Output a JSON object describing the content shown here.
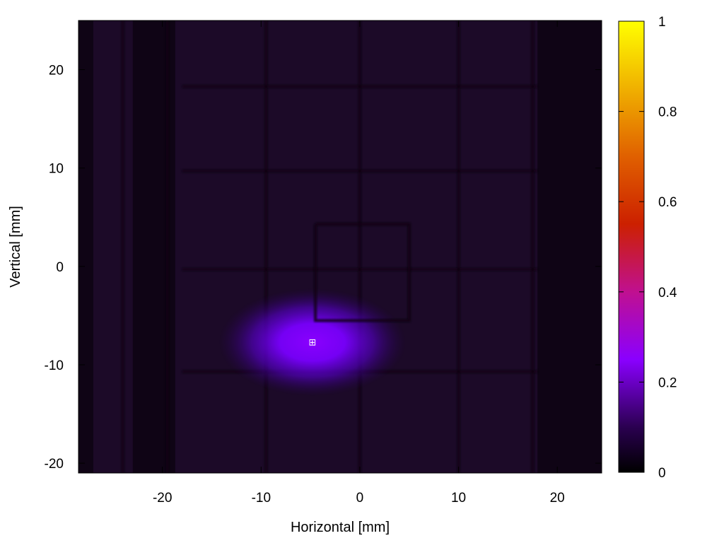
{
  "chart_data": {
    "type": "heatmap",
    "title": "",
    "xlabel": "Horizontal [mm]",
    "ylabel": "Vertical [mm]",
    "xlim": [
      -28.5,
      24.5
    ],
    "ylim": [
      -21,
      25
    ],
    "x_ticks": [
      -20,
      -10,
      0,
      10,
      20
    ],
    "y_ticks": [
      -20,
      -10,
      0,
      10,
      20
    ],
    "colorbar": {
      "range": [
        0,
        1
      ],
      "ticks": [
        0,
        0.2,
        0.4,
        0.6,
        0.8,
        1
      ],
      "tick_labels": [
        "0",
        "0.2",
        "0.4",
        "0.6",
        "0.8",
        "1"
      ],
      "colormap": "gnuplot (black-purple-red-yellow)",
      "stops": [
        "#000000",
        "#2a0050",
        "#8a00ff",
        "#c01090",
        "#cc2000",
        "#e06000",
        "#f0b000",
        "#ffff00"
      ]
    },
    "background_level": 0.035,
    "hotspot": {
      "x": -4.8,
      "y": -7.7,
      "peak": 0.3,
      "sigma_x": 4.5,
      "sigma_y": 2.6
    },
    "marker": {
      "x": -4.8,
      "y": -7.7,
      "symbol": "⊞",
      "color": "#ffffff"
    },
    "dark_vertical_lines_x": [
      -24,
      -19.5,
      -9.5,
      0,
      10,
      17.5
    ],
    "dark_horizontal_lines_y": [
      18.3,
      9.7,
      -0.3,
      -10.7
    ],
    "dark_inner_box": {
      "x": [
        -4.5,
        5
      ],
      "y": [
        -5.5,
        4.3
      ]
    },
    "dark_edge_bands_x": [
      [
        -28.5,
        -27
      ],
      [
        -23,
        -18.7
      ],
      [
        18,
        24.5
      ]
    ],
    "grid": false
  }
}
